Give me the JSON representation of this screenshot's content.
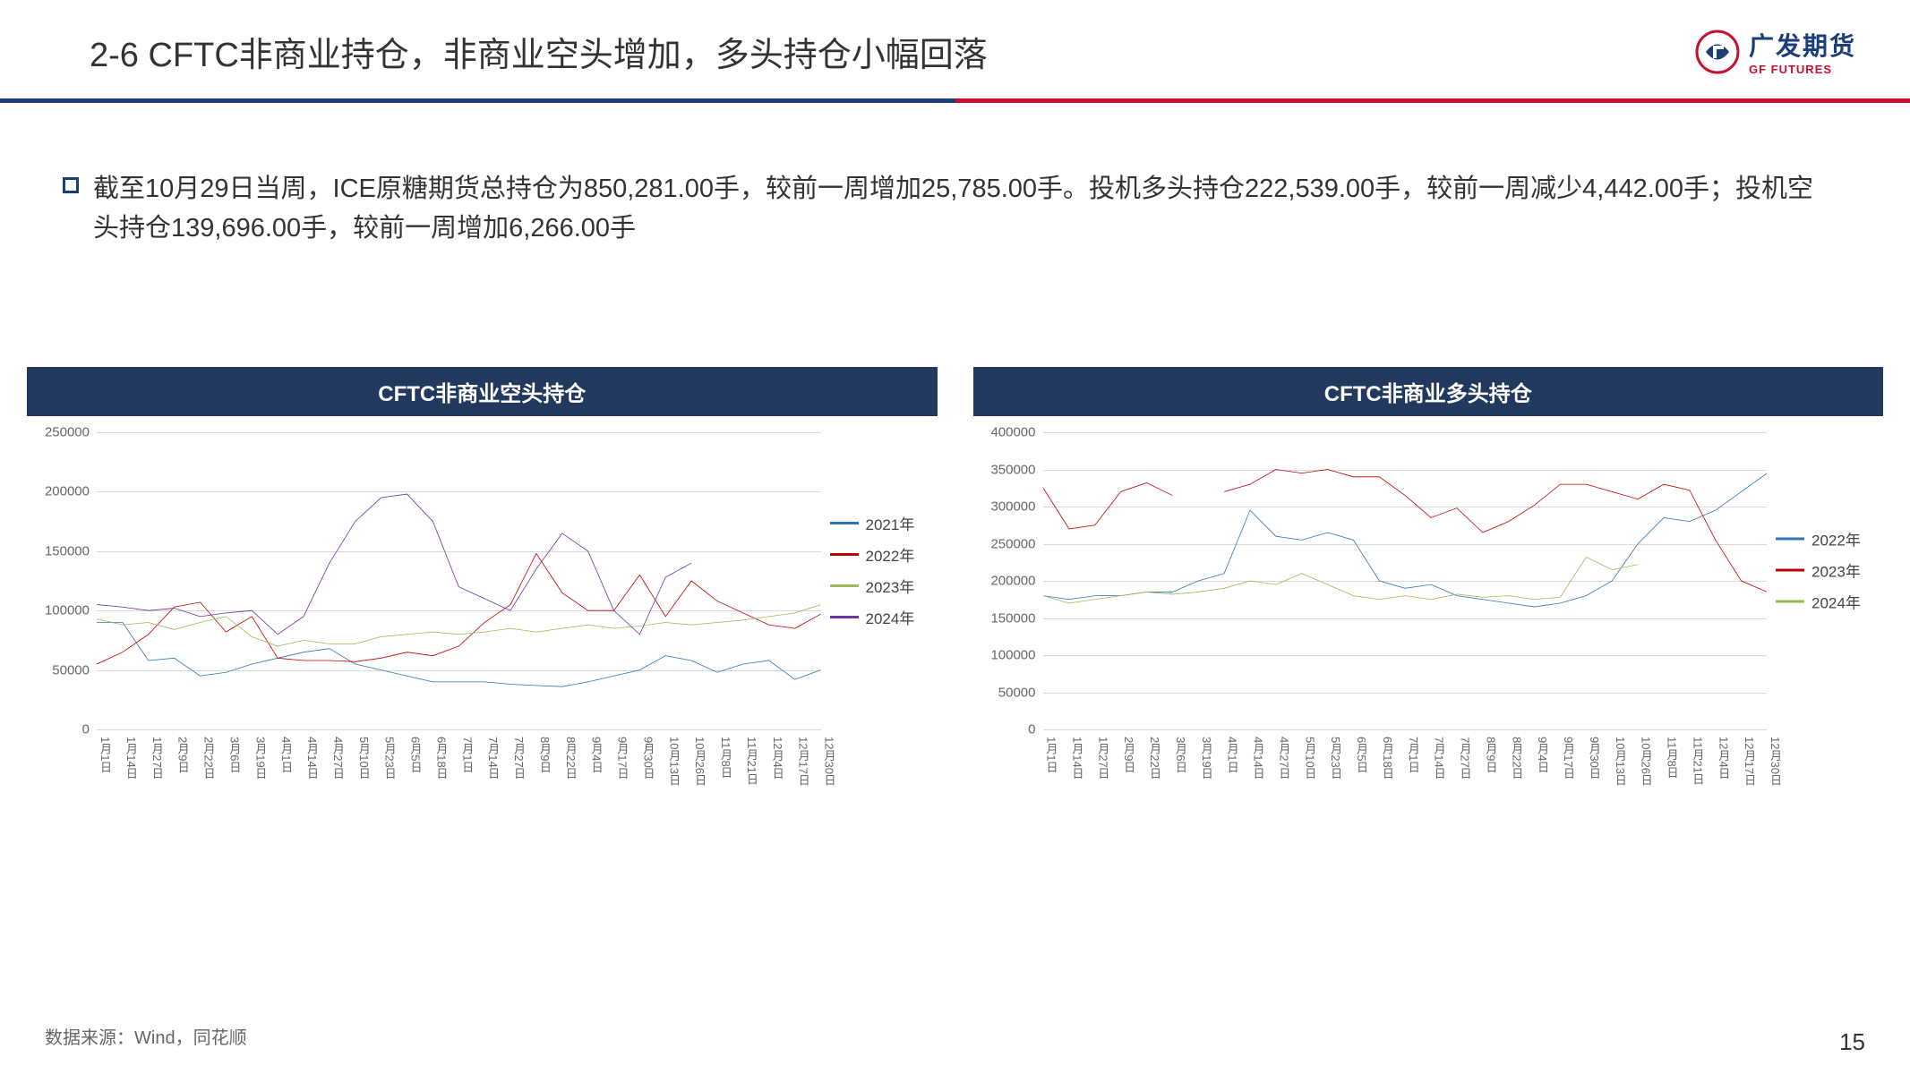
{
  "title": "2-6 CFTC非商业持仓，非商业空头增加，多头持仓小幅回落",
  "logo": {
    "cn": "广发期货",
    "en": "GF FUTURES"
  },
  "bullet": "截至10月29日当周，ICE原糖期货总持仓为850,281.00手，较前一周增加25,785.00手。投机多头持仓222,539.00手，较前一周减少4,442.00手；投机空头持仓139,696.00手，较前一周增加6,266.00手",
  "source": "数据来源：Wind，同花顺",
  "page": "15",
  "xlabels": [
    "1月1日",
    "1月14日",
    "1月27日",
    "2月9日",
    "2月22日",
    "3月6日",
    "3月19日",
    "4月1日",
    "4月14日",
    "4月27日",
    "5月10日",
    "5月23日",
    "6月5日",
    "6月18日",
    "7月1日",
    "7月14日",
    "7月27日",
    "8月9日",
    "8月22日",
    "9月4日",
    "9月17日",
    "9月30日",
    "10月13日",
    "10月26日",
    "11月8日",
    "11月21日",
    "12月4日",
    "12月17日",
    "12月30日"
  ],
  "chart1": {
    "title": "CFTC非商业空头持仓",
    "ylim": [
      0,
      250000
    ],
    "ystep": 50000,
    "series": [
      {
        "name": "2021年",
        "color": "#2e75b6",
        "data": [
          90000,
          90000,
          58000,
          60000,
          45000,
          48000,
          55000,
          60000,
          65000,
          68000,
          55000,
          50000,
          45000,
          40000,
          40000,
          40000,
          38000,
          37000,
          36000,
          40000,
          45000,
          50000,
          62000,
          58000,
          48000,
          55000,
          58000,
          42000,
          50000
        ]
      },
      {
        "name": "2022年",
        "color": "#c00000",
        "data": [
          55000,
          65000,
          80000,
          103000,
          107000,
          82000,
          95000,
          60000,
          58000,
          58000,
          57000,
          60000,
          65000,
          62000,
          70000,
          90000,
          105000,
          148000,
          115000,
          100000,
          100000,
          130000,
          95000,
          125000,
          108000,
          98000,
          88000,
          85000,
          97000
        ]
      },
      {
        "name": "2023年",
        "color": "#9bbb59",
        "data": [
          93000,
          88000,
          90000,
          84000,
          90000,
          95000,
          78000,
          70000,
          75000,
          72000,
          72000,
          78000,
          80000,
          82000,
          80000,
          82000,
          85000,
          82000,
          85000,
          88000,
          85000,
          87000,
          90000,
          88000,
          90000,
          92000,
          95000,
          98000,
          105000
        ]
      },
      {
        "name": "2024年",
        "color": "#7030a0",
        "data": [
          105000,
          103000,
          100000,
          102000,
          95000,
          98000,
          100000,
          80000,
          95000,
          140000,
          175000,
          195000,
          198000,
          175000,
          120000,
          110000,
          100000,
          135000,
          165000,
          150000,
          100000,
          80000,
          128000,
          140000,
          null,
          null,
          null,
          null,
          null
        ]
      }
    ]
  },
  "chart2": {
    "title": "CFTC非商业多头持仓",
    "ylim": [
      0,
      400000
    ],
    "ystep": 50000,
    "series": [
      {
        "name": "2022年",
        "color": "#2e75b6",
        "data": [
          180000,
          175000,
          180000,
          180000,
          185000,
          185000,
          200000,
          210000,
          295000,
          260000,
          255000,
          265000,
          255000,
          200000,
          190000,
          195000,
          180000,
          175000,
          170000,
          165000,
          170000,
          180000,
          200000,
          250000,
          285000,
          280000,
          295000,
          320000,
          345000
        ]
      },
      {
        "name": "2023年",
        "color": "#c00000",
        "data": [
          325000,
          270000,
          275000,
          320000,
          332000,
          315000,
          null,
          320000,
          330000,
          350000,
          345000,
          350000,
          340000,
          340000,
          315000,
          285000,
          298000,
          265000,
          280000,
          302000,
          330000,
          330000,
          320000,
          310000,
          330000,
          322000,
          255000,
          200000,
          185000
        ]
      },
      {
        "name": "2024年",
        "color": "#9bbb59",
        "data": [
          180000,
          170000,
          175000,
          180000,
          185000,
          182000,
          185000,
          190000,
          200000,
          195000,
          210000,
          195000,
          180000,
          175000,
          180000,
          175000,
          182000,
          178000,
          180000,
          175000,
          178000,
          232000,
          215000,
          222000,
          null,
          null,
          null,
          null,
          null
        ]
      }
    ]
  }
}
